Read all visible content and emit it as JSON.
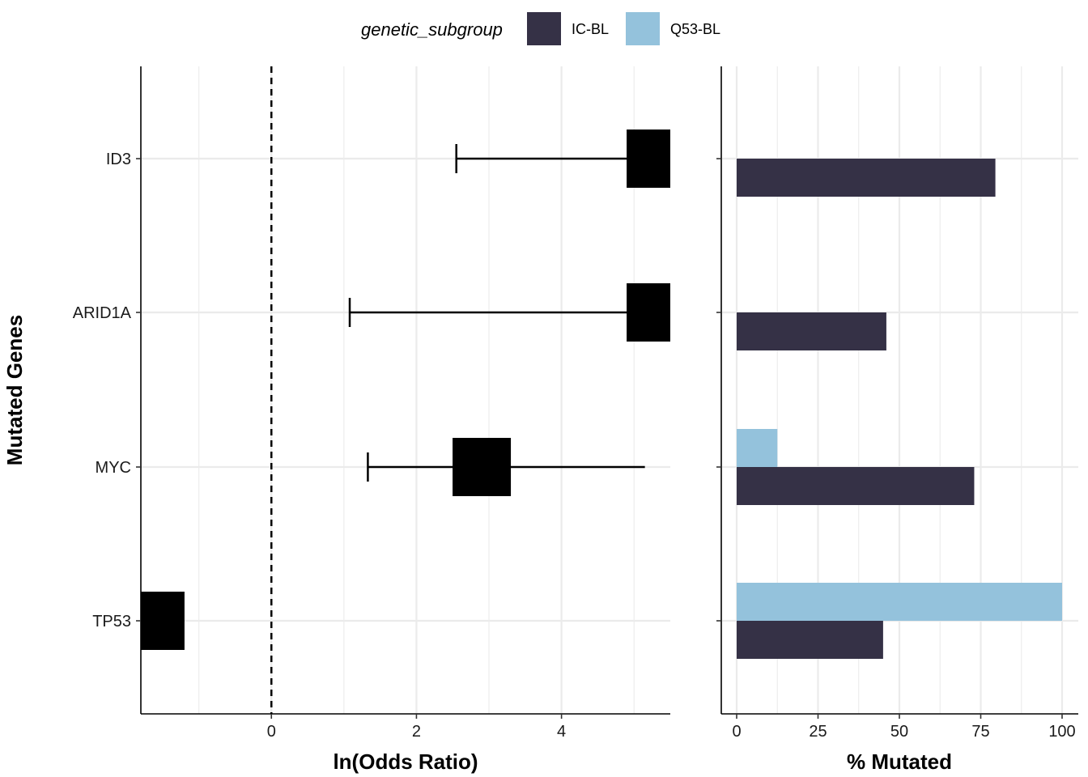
{
  "legend": {
    "title": "genetic_subgroup",
    "items": [
      {
        "label": "IC-BL",
        "color": "#353146"
      },
      {
        "label": "Q53-BL",
        "color": "#94c2dc"
      }
    ]
  },
  "chart_data": [
    {
      "type": "forest",
      "xlabel": "ln(Odds Ratio)",
      "ylabel": "Mutated Genes",
      "xlim": [
        -1.8,
        5.5
      ],
      "xticks": [
        0,
        2,
        4
      ],
      "reference_line": 0,
      "grid": true,
      "categories": [
        "ID3",
        "ARID1A",
        "MYC",
        "TP53"
      ],
      "points": [
        {
          "gene": "ID3",
          "estimate": 5.3,
          "lower": 2.55,
          "upper": 5.3
        },
        {
          "gene": "ARID1A",
          "estimate": 5.3,
          "lower": 1.08,
          "upper": 5.3
        },
        {
          "gene": "MYC",
          "estimate": 2.9,
          "lower": 1.33,
          "upper": 5.15
        },
        {
          "gene": "TP53",
          "estimate": -1.6,
          "lower": -1.8,
          "upper": -1.6
        }
      ]
    },
    {
      "type": "bar",
      "orientation": "horizontal",
      "xlabel": "% Mutated",
      "xlim": [
        0,
        100
      ],
      "xticks": [
        0,
        25,
        50,
        75,
        100
      ],
      "grid": true,
      "categories": [
        "ID3",
        "ARID1A",
        "MYC",
        "TP53"
      ],
      "series": [
        {
          "name": "IC-BL",
          "values": [
            79.5,
            46,
            73,
            45
          ]
        },
        {
          "name": "Q53-BL",
          "values": [
            0,
            0,
            12.5,
            100
          ]
        }
      ]
    }
  ]
}
